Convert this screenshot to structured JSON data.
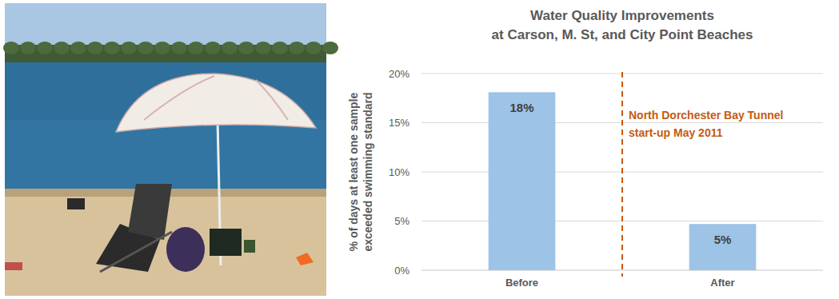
{
  "chart_data": {
    "type": "bar",
    "title": "Water Quality Improvements\nat Carson, M. St, and City Point Beaches",
    "y_label": "% of days at least one sample\nexceeded swimming standard",
    "categories": [
      "Before",
      "After"
    ],
    "values": [
      18.1,
      4.7
    ],
    "value_labels": [
      "18%",
      "5%"
    ],
    "color": "#9dc3e6",
    "ylim": [
      0,
      20
    ],
    "yticks": [
      {
        "value": 0,
        "label": "0%"
      },
      {
        "value": 5,
        "label": "5%"
      },
      {
        "value": 10,
        "label": "10%"
      },
      {
        "value": 15,
        "label": "15%"
      },
      {
        "value": 20,
        "label": "20%"
      }
    ],
    "grid": true,
    "data_labels": true,
    "annotation": "North Dorchester Bay Tunnel\nstart-up May 2011"
  }
}
